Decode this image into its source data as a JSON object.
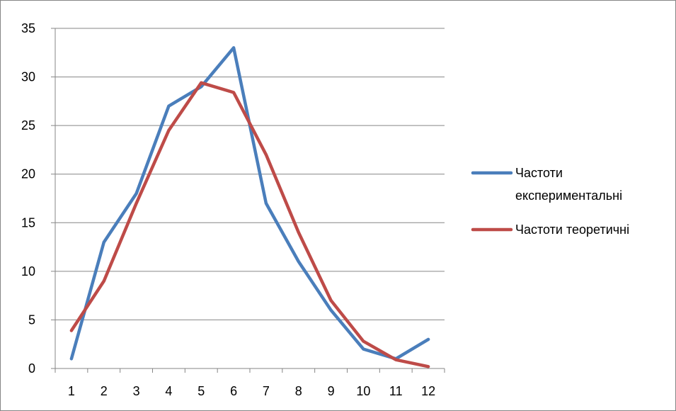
{
  "chart_data": {
    "type": "line",
    "categories": [
      "1",
      "2",
      "3",
      "4",
      "5",
      "6",
      "7",
      "8",
      "9",
      "10",
      "11",
      "12"
    ],
    "series": [
      {
        "name": "Частоти експериментальні",
        "color": "#4a7ebb",
        "values": [
          1,
          13,
          18,
          27,
          29,
          33,
          17,
          11,
          6,
          2,
          1,
          3
        ]
      },
      {
        "name": "Частоти теоретичні",
        "color": "#be4b48",
        "values": [
          3.9,
          9,
          17,
          24.5,
          29.4,
          28.4,
          22,
          14,
          7,
          2.8,
          0.9,
          0.2
        ]
      }
    ],
    "ylim": [
      0,
      35
    ],
    "ymajor": 5,
    "y_ticks": [
      "0",
      "5",
      "10",
      "15",
      "20",
      "25",
      "30",
      "35"
    ],
    "grid": true,
    "legend": "right",
    "title": "",
    "xlabel": "",
    "ylabel": ""
  },
  "legend": {
    "items": [
      {
        "lines": [
          "Частоти",
          "експериментальні"
        ]
      },
      {
        "lines": [
          "Частоти теоретичні"
        ]
      }
    ]
  }
}
